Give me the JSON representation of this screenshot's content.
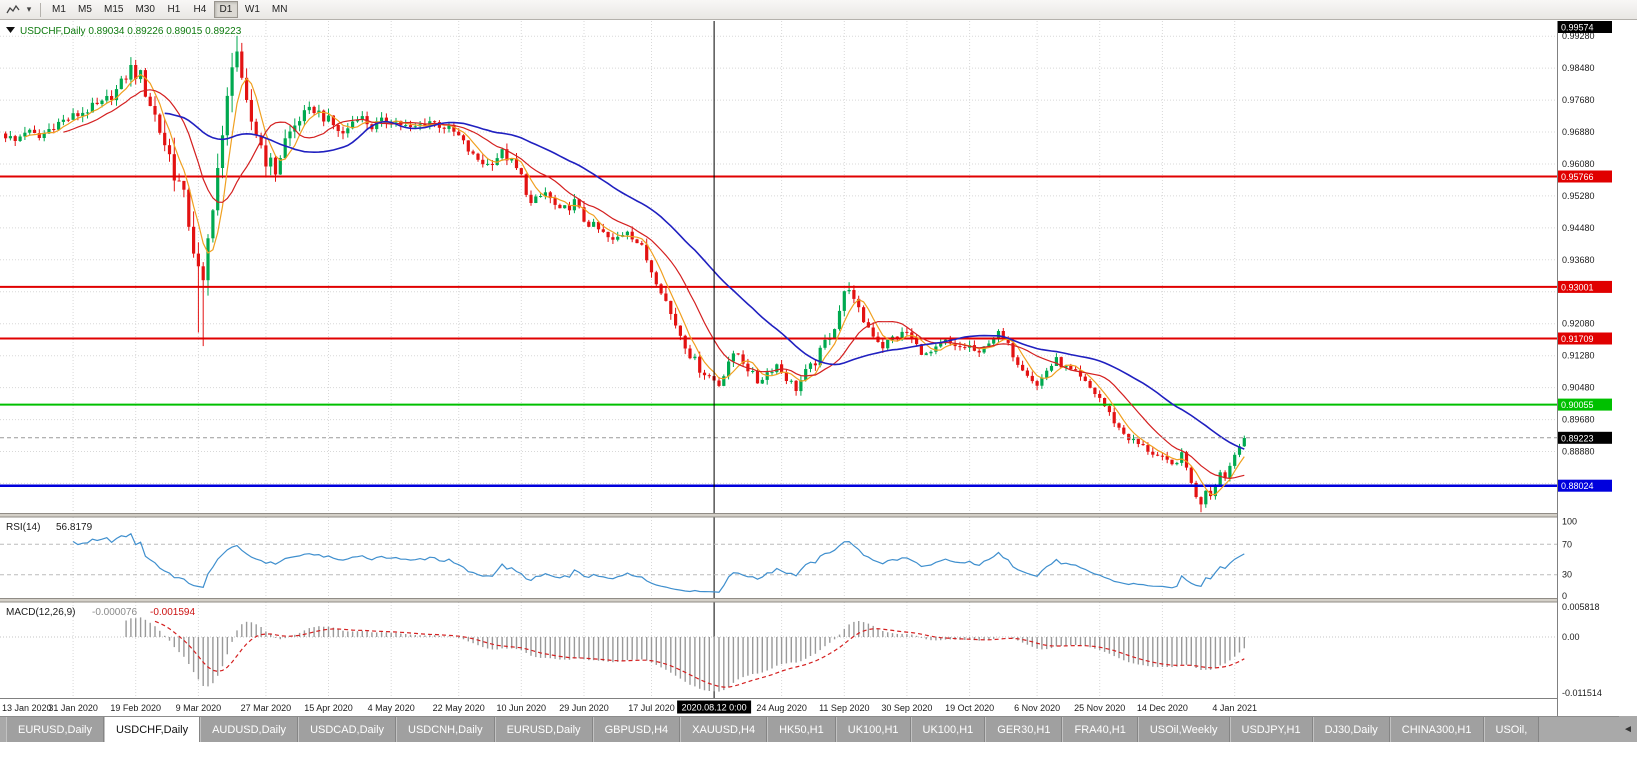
{
  "toolbar": {
    "timeframes": [
      "M1",
      "M5",
      "M15",
      "M30",
      "H1",
      "H4",
      "D1",
      "W1",
      "MN"
    ],
    "active_timeframe": "D1",
    "icons": [
      "chart-type-icon",
      "dropdown-caret-icon"
    ]
  },
  "chart": {
    "title": "USDCHF,Daily",
    "ohlc": {
      "open": "0.89034",
      "high": "0.89226",
      "low": "0.89015",
      "close": "0.89223"
    },
    "current_price_tag": "0.89223",
    "top_price_tag": "0.99574",
    "price_axis_labels": [
      "0.99280",
      "0.98480",
      "0.97680",
      "0.96880",
      "0.96080",
      "0.95280",
      "0.94480",
      "0.93680",
      "0.92080",
      "0.91280",
      "0.90480",
      "0.89680",
      "0.88880"
    ],
    "hlines": [
      {
        "price": 0.95766,
        "label": "0.95766",
        "color": "#e00000",
        "width": 2
      },
      {
        "price": 0.93001,
        "label": "0.93001",
        "color": "#e00000",
        "width": 2
      },
      {
        "price": 0.91709,
        "label": "0.91709",
        "color": "#e00000",
        "width": 2
      },
      {
        "price": 0.90055,
        "label": "0.90055",
        "color": "#00c000",
        "width": 2
      },
      {
        "price": 0.88024,
        "label": "0.88024",
        "color": "#0000dd",
        "width": 2.5
      }
    ],
    "vline": {
      "day": 147,
      "label": "2020.08.12 0:00"
    },
    "date_ticks": [
      [
        0,
        "13 Jan 2020"
      ],
      [
        14,
        "31 Jan 2020"
      ],
      [
        27,
        "19 Feb 2020"
      ],
      [
        40,
        "9 Mar 2020"
      ],
      [
        54,
        "27 Mar 2020"
      ],
      [
        67,
        "15 Apr 2020"
      ],
      [
        80,
        "4 May 2020"
      ],
      [
        94,
        "22 May 2020"
      ],
      [
        107,
        "10 Jun 2020"
      ],
      [
        120,
        "29 Jun 2020"
      ],
      [
        134,
        "17 Jul 2020"
      ],
      [
        161,
        "24 Aug 2020"
      ],
      [
        174,
        "11 Sep 2020"
      ],
      [
        187,
        "30 Sep 2020"
      ],
      [
        200,
        "19 Oct 2020"
      ],
      [
        214,
        "6 Nov 2020"
      ],
      [
        227,
        "25 Nov 2020"
      ],
      [
        240,
        "14 Dec 2020"
      ],
      [
        255,
        "4 Jan 2021"
      ]
    ],
    "colors": {
      "bull": "#00a94f",
      "bear": "#e31212",
      "ma_fast": "#f0a020",
      "ma_mid": "#d42020",
      "ma_slow": "#2020c0",
      "grid": "#d8d8d8",
      "header_text": "#0e7a0e",
      "vline": "#000000"
    }
  },
  "chart_data": {
    "type": "candlestick",
    "title": "USDCHF,Daily",
    "symbol": "USDCHF",
    "timeframe": "Daily",
    "bars": 258,
    "visible_price_range": [
      0.8734,
      0.9966
    ],
    "close_anchors": [
      [
        0,
        0.968
      ],
      [
        2,
        0.9664
      ],
      [
        4,
        0.9692
      ],
      [
        7,
        0.9673
      ],
      [
        10,
        0.9706
      ],
      [
        14,
        0.9726
      ],
      [
        17,
        0.9744
      ],
      [
        20,
        0.9757
      ],
      [
        23,
        0.9792
      ],
      [
        26,
        0.9846
      ],
      [
        28,
        0.9824
      ],
      [
        30,
        0.9762
      ],
      [
        32,
        0.9694
      ],
      [
        34,
        0.9628
      ],
      [
        36,
        0.9556
      ],
      [
        38,
        0.9468
      ],
      [
        40,
        0.9332
      ],
      [
        41,
        0.9292
      ],
      [
        42,
        0.9412
      ],
      [
        43,
        0.9522
      ],
      [
        44,
        0.9598
      ],
      [
        45,
        0.9658
      ],
      [
        46,
        0.9762
      ],
      [
        47,
        0.9878
      ],
      [
        48,
        0.9894
      ],
      [
        49,
        0.9792
      ],
      [
        50,
        0.9742
      ],
      [
        52,
        0.9688
      ],
      [
        54,
        0.9622
      ],
      [
        56,
        0.959
      ],
      [
        58,
        0.9668
      ],
      [
        61,
        0.9722
      ],
      [
        64,
        0.9746
      ],
      [
        67,
        0.9716
      ],
      [
        70,
        0.9682
      ],
      [
        73,
        0.9732
      ],
      [
        76,
        0.9702
      ],
      [
        80,
        0.9722
      ],
      [
        84,
        0.9694
      ],
      [
        88,
        0.9716
      ],
      [
        92,
        0.9696
      ],
      [
        94,
        0.9676
      ],
      [
        97,
        0.9626
      ],
      [
        100,
        0.9606
      ],
      [
        103,
        0.9636
      ],
      [
        105,
        0.9612
      ],
      [
        107,
        0.9576
      ],
      [
        109,
        0.9506
      ],
      [
        112,
        0.9536
      ],
      [
        115,
        0.9486
      ],
      [
        118,
        0.9512
      ],
      [
        120,
        0.9468
      ],
      [
        123,
        0.9442
      ],
      [
        126,
        0.9412
      ],
      [
        129,
        0.9446
      ],
      [
        132,
        0.9396
      ],
      [
        134,
        0.9342
      ],
      [
        136,
        0.9296
      ],
      [
        138,
        0.9232
      ],
      [
        140,
        0.9182
      ],
      [
        142,
        0.9132
      ],
      [
        144,
        0.9096
      ],
      [
        146,
        0.9076
      ],
      [
        148,
        0.9056
      ],
      [
        150,
        0.9116
      ],
      [
        152,
        0.9132
      ],
      [
        154,
        0.9096
      ],
      [
        156,
        0.9062
      ],
      [
        158,
        0.9086
      ],
      [
        160,
        0.9106
      ],
      [
        162,
        0.9072
      ],
      [
        164,
        0.9046
      ],
      [
        166,
        0.9086
      ],
      [
        168,
        0.9112
      ],
      [
        170,
        0.9162
      ],
      [
        172,
        0.9202
      ],
      [
        174,
        0.9282
      ],
      [
        175,
        0.9302
      ],
      [
        176,
        0.9262
      ],
      [
        178,
        0.9216
      ],
      [
        180,
        0.9182
      ],
      [
        182,
        0.9152
      ],
      [
        184,
        0.9172
      ],
      [
        187,
        0.9186
      ],
      [
        189,
        0.9152
      ],
      [
        191,
        0.9128
      ],
      [
        193,
        0.9142
      ],
      [
        195,
        0.9162
      ],
      [
        197,
        0.9146
      ],
      [
        200,
        0.9152
      ],
      [
        202,
        0.9128
      ],
      [
        204,
        0.9166
      ],
      [
        206,
        0.9182
      ],
      [
        208,
        0.9152
      ],
      [
        210,
        0.9112
      ],
      [
        212,
        0.9086
      ],
      [
        214,
        0.9052
      ],
      [
        216,
        0.9092
      ],
      [
        218,
        0.9116
      ],
      [
        220,
        0.9096
      ],
      [
        222,
        0.9082
      ],
      [
        224,
        0.9058
      ],
      [
        227,
        0.9022
      ],
      [
        229,
        0.8982
      ],
      [
        231,
        0.8946
      ],
      [
        233,
        0.8922
      ],
      [
        235,
        0.8906
      ],
      [
        237,
        0.8892
      ],
      [
        240,
        0.8868
      ],
      [
        242,
        0.8852
      ],
      [
        244,
        0.8882
      ],
      [
        246,
        0.8812
      ],
      [
        247,
        0.8772
      ],
      [
        248,
        0.8758
      ],
      [
        249,
        0.8792
      ],
      [
        250,
        0.8778
      ],
      [
        251,
        0.8806
      ],
      [
        252,
        0.8836
      ],
      [
        253,
        0.8822
      ],
      [
        254,
        0.8852
      ],
      [
        255,
        0.888
      ],
      [
        256,
        0.8902
      ],
      [
        257,
        0.8922
      ]
    ],
    "volatility_anchors": [
      [
        0,
        0.003
      ],
      [
        24,
        0.0034
      ],
      [
        30,
        0.007
      ],
      [
        36,
        0.0085
      ],
      [
        44,
        0.009
      ],
      [
        50,
        0.008
      ],
      [
        56,
        0.005
      ],
      [
        62,
        0.0036
      ],
      [
        90,
        0.0028
      ],
      [
        110,
        0.003
      ],
      [
        140,
        0.0032
      ],
      [
        160,
        0.0026
      ],
      [
        175,
        0.003
      ],
      [
        200,
        0.0024
      ],
      [
        230,
        0.0024
      ],
      [
        245,
        0.0022
      ],
      [
        257,
        0.0016
      ]
    ],
    "wick_overrides": {
      "lows": [
        [
          40,
          0.9186
        ],
        [
          41,
          0.9152
        ],
        [
          248,
          0.8736
        ]
      ],
      "highs": [
        [
          26,
          0.9854
        ],
        [
          47,
          0.9886
        ],
        [
          48,
          0.9906
        ],
        [
          175,
          0.9312
        ]
      ]
    },
    "moving_averages": [
      {
        "period": 5,
        "color_key": "ma_fast"
      },
      {
        "period": 13,
        "color_key": "ma_mid"
      },
      {
        "period": 34,
        "color_key": "ma_slow"
      }
    ]
  },
  "rsi": {
    "name_label": "RSI(14)",
    "value_label": "56.8179",
    "period": 14,
    "scale_labels": [
      [
        100,
        "100"
      ],
      [
        70,
        "70"
      ],
      [
        30,
        "30"
      ],
      [
        0,
        "0"
      ]
    ],
    "level_lines": [
      70,
      30
    ],
    "line_color": "#3f8fce"
  },
  "macd": {
    "name_label": "MACD(12,26,9)",
    "main_value_label": "-0.000076",
    "signal_value_label": "-0.001594",
    "fast": 12,
    "slow": 26,
    "signal": 9,
    "scale_labels": [
      [
        0.005818,
        "0.005818"
      ],
      [
        0,
        "0.00"
      ],
      [
        -0.011514,
        "-0.011514"
      ]
    ],
    "histogram_color": "#9a9a9a",
    "signal_color": "#d42020"
  },
  "tabbar": {
    "tabs": [
      "EURUSD,Daily",
      "USDCHF,Daily",
      "AUDUSD,Daily",
      "USDCAD,Daily",
      "USDCNH,Daily",
      "EURUSD,Daily",
      "GBPUSD,H4",
      "XAUUSD,H4",
      "HK50,H1",
      "UK100,H1",
      "UK100,H1",
      "GER30,H1",
      "FRA40,H1",
      "USOil,Weekly",
      "USDJPY,H1",
      "DJ30,Daily",
      "CHINA300,H1",
      "USOil,"
    ],
    "active_index": 1,
    "scroll_icon": "◄"
  }
}
